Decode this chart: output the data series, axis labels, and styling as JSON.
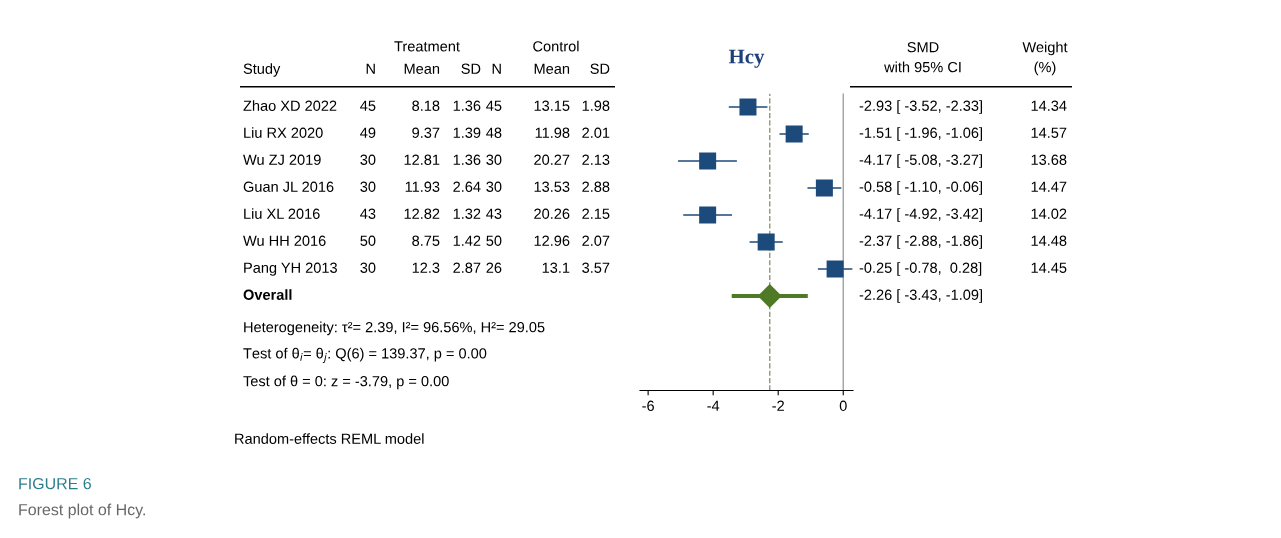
{
  "chart_data": [
    {
      "type": "other",
      "ylabel": "Study",
      "categories": [
        "N",
        "Mean",
        "SD",
        "N",
        "Mean",
        "SD"
      ],
      "y_categories": [
        "Zhao XD 2022",
        "Liu RX 2020",
        "Wu ZJ 2019",
        "Guan JL 2016",
        "Liu XL 2016",
        "Wu HH 2016",
        "Pang YH 2013",
        "Overall"
      ],
      "cell_labels": [
        [
          "45",
          "8.18",
          "1.36",
          "45",
          "13.15",
          "1.98"
        ],
        [
          "49",
          "9.37",
          "1.39",
          "48",
          "11.98",
          "2.01"
        ],
        [
          "30",
          "12.81",
          "1.36",
          "30",
          "20.27",
          "2.13"
        ],
        [
          "30",
          "11.93",
          "2.64",
          "30",
          "13.53",
          "2.88"
        ],
        [
          "43",
          "12.82",
          "1.32",
          "43",
          "20.26",
          "2.15"
        ],
        [
          "50",
          "8.75",
          "1.42",
          "50",
          "12.96",
          "2.07"
        ],
        [
          "30",
          "12.3",
          "2.87",
          "26",
          "13.1",
          "3.57"
        ],
        [
          null,
          null,
          null,
          null,
          null,
          null
        ]
      ],
      "annotations": [
        "Treatment",
        "Control",
        "Heterogeneity: τ²= 2.39, I²= 96.56%, H²= 29.05",
        "Test of θ$_{i}$= θ$_{j}$: Q(6) = 139.37, p = 0.00",
        "Test of θ = 0: z = -3.79, p = 0.00",
        "Random-effects REML model",
        "FIGURE 6",
        "Forest plot of Hcy."
      ]
    },
    {
      "type": "scatter",
      "title": "Hcy",
      "orientation": "horizontal",
      "categories": [
        null,
        null,
        null,
        null,
        null,
        null,
        null,
        null,
        null,
        null,
        null
      ],
      "xlim": [
        -6.25,
        0.3
      ],
      "xticks": [
        -6,
        -4,
        -2,
        0
      ],
      "grid": false,
      "ref_lines": [
        {
          "axis": "x",
          "value": 0,
          "color": "#a0a0a0",
          "line_style": "solid"
        },
        {
          "axis": "x",
          "value": -2.26,
          "color": "#8c9a6a",
          "line_style": "dashed"
        }
      ],
      "series": [
        {
          "color": "#1c4a7a",
          "marker": "square",
          "values": [
            -2.93,
            -1.51,
            -4.17,
            -0.58,
            -4.17,
            -2.37,
            -0.25,
            null,
            null,
            null,
            null
          ],
          "errors": [
            [
              -3.52,
              -2.33
            ],
            [
              -1.96,
              -1.06
            ],
            [
              -5.08,
              -3.27
            ],
            [
              -1.1,
              -0.06
            ],
            [
              -4.92,
              -3.42
            ],
            [
              -2.88,
              -1.86
            ],
            [
              -0.78,
              0.28
            ],
            null,
            null,
            null,
            null
          ]
        },
        {
          "color": "#4e7a25",
          "marker": "diamond",
          "values": [
            null,
            null,
            null,
            null,
            null,
            null,
            null,
            -2.26,
            null,
            null,
            null
          ],
          "errors": [
            null,
            null,
            null,
            null,
            null,
            null,
            null,
            [
              -3.43,
              -1.09
            ],
            null,
            null,
            null
          ]
        }
      ]
    },
    {
      "type": "other",
      "categories": [
        "SMD\nwith 95% CI",
        "Weight\n(%)"
      ],
      "cell_labels": [
        [
          "-2.93 [ -3.52, -2.33]",
          "14.34"
        ],
        [
          "-1.51 [ -1.96, -1.06]",
          "14.57"
        ],
        [
          "-4.17 [ -5.08, -3.27]",
          "13.68"
        ],
        [
          "-0.58 [ -1.10, -0.06]",
          "14.47"
        ],
        [
          "-4.17 [ -4.92, -3.42]",
          "14.02"
        ],
        [
          "-2.37 [ -2.88, -1.86]",
          "14.48"
        ],
        [
          "-0.25 [ -0.78,  0.28]",
          "14.45"
        ],
        [
          "-2.26 [ -3.43, -1.09]",
          null
        ]
      ]
    }
  ]
}
